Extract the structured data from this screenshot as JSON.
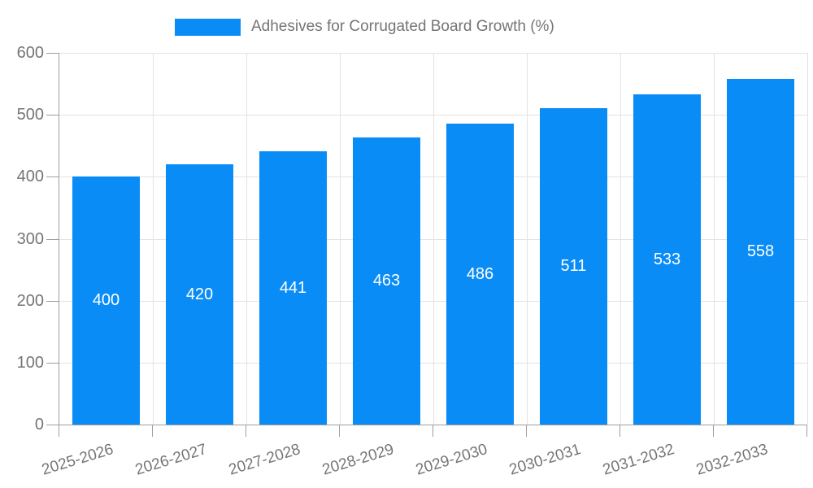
{
  "chart_data": {
    "type": "bar",
    "title": "Adhesives for Corrugated Board Growth (%)",
    "legend": {
      "position": "top",
      "entries": [
        "Adhesives for Corrugated Board Growth (%)"
      ]
    },
    "categories": [
      "2025-2026",
      "2026-2027",
      "2027-2028",
      "2028-2029",
      "2029-2030",
      "2030-2031",
      "2031-2032",
      "2032-2033"
    ],
    "series": [
      {
        "name": "Adhesives for Corrugated Board Growth (%)",
        "values": [
          400,
          420,
          441,
          463,
          486,
          511,
          533,
          558
        ]
      }
    ],
    "bar_value_labels": [
      "400",
      "420",
      "441",
      "463",
      "486",
      "511",
      "533",
      "558"
    ],
    "xlabel": "",
    "ylabel": "",
    "ylim": [
      0,
      600
    ],
    "yticks": [
      0,
      100,
      200,
      300,
      400,
      500,
      600
    ],
    "grid": "on",
    "colors": {
      "bar": "#0a8cf7",
      "bar_label_text": "#ffffff",
      "axis_text": "#757575",
      "grid_line": "#e3e3e3",
      "axis_line": "#9e9e9e"
    }
  }
}
